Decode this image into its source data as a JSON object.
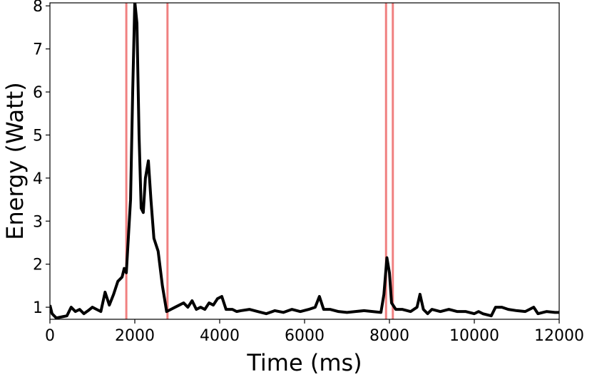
{
  "chart_data": {
    "type": "line",
    "xlabel": "Time (ms)",
    "ylabel": "Energy (Watt)",
    "xlim": [
      0,
      12000
    ],
    "ylim": [
      0.72,
      8.07
    ],
    "xticks": [
      0,
      2000,
      4000,
      6000,
      8000,
      10000,
      12000
    ],
    "yticks": [
      1,
      2,
      3,
      4,
      5,
      6,
      7,
      8
    ],
    "vlines": [
      1800,
      2770,
      7920,
      8080
    ],
    "vline_color": "#f08080",
    "series": [
      {
        "color": "#000000",
        "x": [
          0,
          50,
          150,
          300,
          400,
          500,
          600,
          700,
          800,
          900,
          1000,
          1100,
          1200,
          1300,
          1400,
          1500,
          1600,
          1700,
          1750,
          1800,
          1900,
          1950,
          2000,
          2050,
          2100,
          2150,
          2200,
          2250,
          2320,
          2380,
          2450,
          2550,
          2650,
          2750,
          2850,
          2950,
          3050,
          3150,
          3250,
          3350,
          3450,
          3550,
          3650,
          3750,
          3850,
          3950,
          4050,
          4150,
          4300,
          4400,
          4500,
          4700,
          4900,
          5100,
          5300,
          5500,
          5700,
          5900,
          6100,
          6250,
          6350,
          6450,
          6600,
          6800,
          7000,
          7200,
          7400,
          7600,
          7800,
          7870,
          7940,
          8000,
          8050,
          8150,
          8300,
          8500,
          8650,
          8720,
          8800,
          8900,
          9000,
          9200,
          9400,
          9600,
          9800,
          10000,
          10100,
          10200,
          10400,
          10500,
          10650,
          10800,
          11000,
          11200,
          11300,
          11400,
          11500,
          11700,
          11900,
          12000
        ],
        "values": [
          1.05,
          0.85,
          0.75,
          0.78,
          0.8,
          1.0,
          0.9,
          0.95,
          0.85,
          0.92,
          1.0,
          0.95,
          0.9,
          1.35,
          1.05,
          1.3,
          1.6,
          1.7,
          1.9,
          1.8,
          3.5,
          6.0,
          8.1,
          7.6,
          5.0,
          3.3,
          3.2,
          4.0,
          4.4,
          3.5,
          2.6,
          2.3,
          1.5,
          0.9,
          0.95,
          1.0,
          1.05,
          1.1,
          1.0,
          1.15,
          0.95,
          1.0,
          0.95,
          1.1,
          1.05,
          1.2,
          1.25,
          0.95,
          0.95,
          0.9,
          0.92,
          0.95,
          0.9,
          0.85,
          0.92,
          0.88,
          0.95,
          0.9,
          0.95,
          1.0,
          1.25,
          0.95,
          0.95,
          0.9,
          0.88,
          0.9,
          0.92,
          0.9,
          0.88,
          1.3,
          2.15,
          1.8,
          1.1,
          0.95,
          0.95,
          0.9,
          1.0,
          1.3,
          0.95,
          0.85,
          0.95,
          0.9,
          0.95,
          0.9,
          0.9,
          0.85,
          0.9,
          0.85,
          0.8,
          1.0,
          1.0,
          0.95,
          0.92,
          0.9,
          0.95,
          1.0,
          0.85,
          0.9,
          0.88,
          0.88
        ]
      }
    ]
  }
}
